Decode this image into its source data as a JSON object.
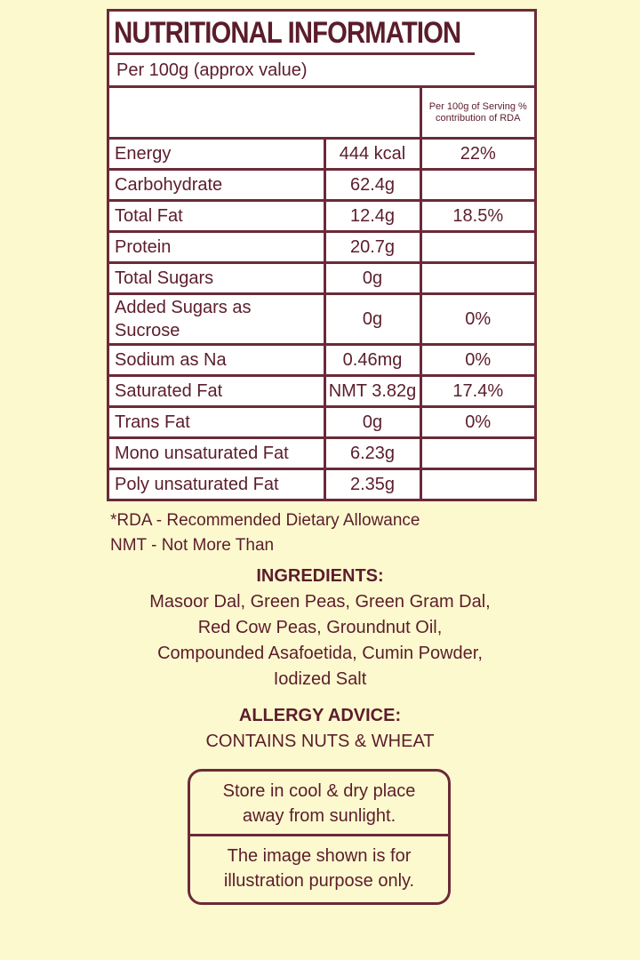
{
  "title": "NUTRITIONAL INFORMATION",
  "per_line": "Per 100g (approx value)",
  "rda_header": "Per 100g of Serving % contribution of RDA",
  "rows": [
    {
      "nutrient": "Energy",
      "value": "444 kcal",
      "rda": "22%"
    },
    {
      "nutrient": "Carbohydrate",
      "value": "62.4g",
      "rda": ""
    },
    {
      "nutrient": "Total Fat",
      "value": "12.4g",
      "rda": "18.5%"
    },
    {
      "nutrient": "Protein",
      "value": "20.7g",
      "rda": ""
    },
    {
      "nutrient": "Total Sugars",
      "value": "0g",
      "rda": ""
    },
    {
      "nutrient": "Added Sugars as Sucrose",
      "value": "0g",
      "rda": "0%"
    },
    {
      "nutrient": "Sodium as Na",
      "value": "0.46mg",
      "rda": "0%"
    },
    {
      "nutrient": "Saturated Fat",
      "value": "NMT 3.82g",
      "rda": "17.4%"
    },
    {
      "nutrient": "Trans Fat",
      "value": "0g",
      "rda": "0%"
    },
    {
      "nutrient": "Mono unsaturated Fat",
      "value": "6.23g",
      "rda": ""
    },
    {
      "nutrient": "Poly unsaturated Fat",
      "value": "2.35g",
      "rda": ""
    }
  ],
  "notes": [
    "*RDA - Recommended Dietary Allowance",
    "NMT - Not More Than"
  ],
  "ingredients": {
    "heading": "INGREDIENTS:",
    "lines": [
      "Masoor Dal, Green Peas, Green Gram Dal,",
      "Red Cow Peas, Groundnut Oil,",
      "Compounded Asafoetida, Cumin Powder,",
      "Iodized Salt"
    ]
  },
  "allergy": {
    "heading": "ALLERGY ADVICE:",
    "text": "CONTAINS NUTS & WHEAT"
  },
  "storage": [
    "Store in cool & dry place",
    "away from sunlight."
  ],
  "disclaimer": [
    "The image shown is for",
    "illustration purpose only."
  ],
  "colors": {
    "background": "#fdf9cf",
    "text": "#5b1d2b",
    "border": "#6b2a38"
  }
}
